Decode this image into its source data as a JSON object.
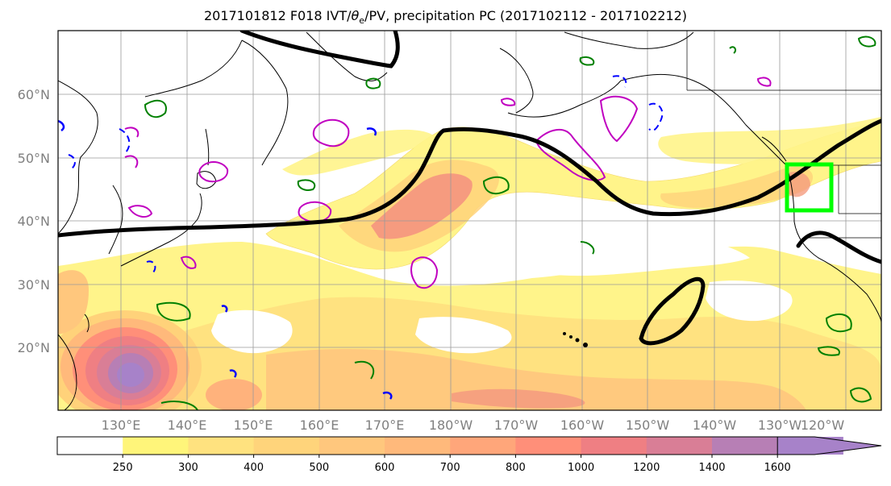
{
  "title": {
    "prefix": "2017101812 F018 IVT/",
    "theta": "θ",
    "sub": "e",
    "suffix": "/PV, precipitation PC (2017102112 - 2017102212)"
  },
  "lat_labels": [
    "20°N",
    "30°N",
    "40°N",
    "50°N",
    "60°N"
  ],
  "lon_labels": [
    "130°E",
    "140°E",
    "150°E",
    "160°E",
    "170°E",
    "180°W",
    "170°W",
    "160°W",
    "150°W",
    "140°W",
    "130°W",
    "120°W"
  ],
  "colorbar": {
    "ticks": [
      "250",
      "300",
      "400",
      "500",
      "600",
      "700",
      "800",
      "1000",
      "1200",
      "1400",
      "1600"
    ],
    "colors": [
      "#ffffff",
      "#fff57a",
      "#ffe27f",
      "#ffd47b",
      "#ffc77d",
      "#ffb97b",
      "#ffa67a",
      "#ff8f79",
      "#ef7f83",
      "#d97e96",
      "#b77fb5",
      "#a782c9"
    ]
  },
  "colors": {
    "pv_contour": "#008000",
    "theta_contour_pos": "#c000c0",
    "theta_contour_neg": "#0000ff",
    "jet_contour": "#000000",
    "target_box": "#00ff00"
  }
}
